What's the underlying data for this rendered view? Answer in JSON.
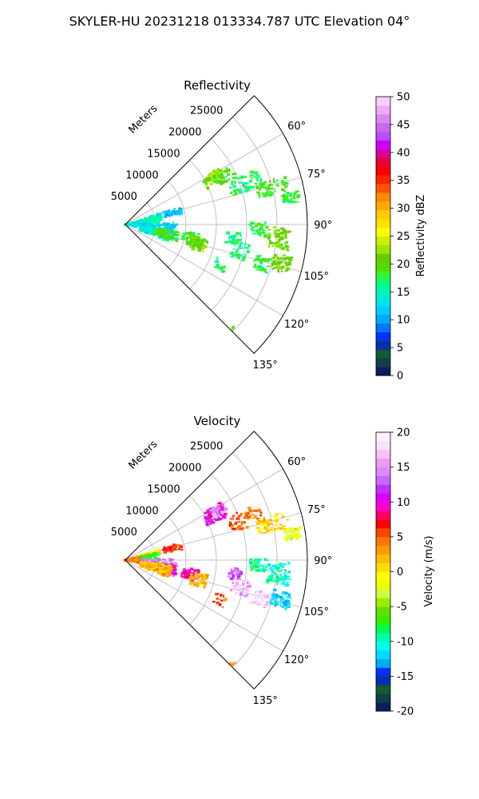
{
  "figure": {
    "suptitle": "SKYLER-HU  20231218  013334.787 UTC Elevation 04°"
  },
  "chart_data": [
    {
      "type": "polar-sector-ppi",
      "title": "Reflectivity",
      "range_axis_label": "Meters",
      "range_ticks": [
        5000,
        10000,
        15000,
        20000,
        25000
      ],
      "range_max": 30000,
      "azimuth_ticks_deg": [
        60,
        75,
        90,
        105,
        120,
        135
      ],
      "azimuth_tick_labels": [
        "60°",
        "75°",
        "90°",
        "105°",
        "120°",
        "135°"
      ],
      "azimuth_range_deg": [
        45,
        135
      ],
      "grid": true,
      "colorbar": {
        "label": "Reflectivity dBZ",
        "ticks": [
          0,
          5,
          10,
          15,
          20,
          25,
          30,
          35,
          40,
          45,
          50
        ],
        "range": [
          0,
          50
        ],
        "colors": [
          "#0b1f5e",
          "#0e3f4a",
          "#145a32",
          "#0a2fa8",
          "#0033ff",
          "#0077ff",
          "#00aaff",
          "#00ccff",
          "#00e6e6",
          "#00f5c0",
          "#00ff88",
          "#33f533",
          "#55dd00",
          "#66cc00",
          "#99e600",
          "#ccf000",
          "#ffff00",
          "#ffe000",
          "#ffcc00",
          "#ffaa00",
          "#ff8800",
          "#ff5500",
          "#ff2200",
          "#ff0000",
          "#e60033",
          "#d9009c",
          "#cc00ff",
          "#b84dff",
          "#cc66ee",
          "#dd88ee",
          "#eeaaf4",
          "#f6d0fa"
        ]
      },
      "echo_clusters": [
        {
          "az": 77,
          "r": 4300,
          "dr": 1800,
          "daz": 5,
          "value": 14,
          "n": 60
        },
        {
          "az": 76,
          "r": 8000,
          "dr": 1500,
          "daz": 4,
          "value": 11,
          "n": 50
        },
        {
          "az": 84,
          "r": 3000,
          "dr": 2600,
          "daz": 8,
          "value": 16,
          "n": 110
        },
        {
          "az": 88,
          "r": 1200,
          "dr": 1200,
          "daz": 14,
          "value": 13,
          "n": 60
        },
        {
          "az": 98,
          "r": 5500,
          "dr": 3000,
          "daz": 10,
          "value": 12,
          "n": 150
        },
        {
          "az": 104,
          "r": 5200,
          "dr": 2600,
          "daz": 8,
          "value": 14,
          "n": 140
        },
        {
          "az": 103,
          "r": 7000,
          "dr": 2000,
          "daz": 6,
          "value": 19,
          "n": 70
        },
        {
          "az": 102,
          "r": 11000,
          "dr": 1400,
          "daz": 5,
          "value": 18,
          "n": 50
        },
        {
          "az": 105,
          "r": 12500,
          "dr": 1400,
          "daz": 5,
          "value": 21,
          "n": 60
        },
        {
          "az": 63,
          "r": 16500,
          "dr": 1800,
          "daz": 4,
          "value": 22,
          "n": 80
        },
        {
          "az": 64,
          "r": 18000,
          "dr": 2000,
          "daz": 3,
          "value": 19,
          "n": 30
        },
        {
          "az": 71,
          "r": 21000,
          "dr": 2800,
          "daz": 4,
          "value": 17,
          "n": 60
        },
        {
          "az": 76,
          "r": 25000,
          "dr": 2600,
          "daz": 3,
          "value": 19,
          "n": 60
        },
        {
          "az": 81,
          "r": 27800,
          "dr": 1400,
          "daz": 2,
          "value": 18,
          "n": 40
        },
        {
          "az": 92,
          "r": 22000,
          "dr": 1400,
          "daz": 3,
          "value": 18,
          "n": 40
        },
        {
          "az": 95,
          "r": 25500,
          "dr": 1800,
          "daz": 4,
          "value": 21,
          "n": 70
        },
        {
          "az": 97,
          "r": 18000,
          "dr": 1200,
          "daz": 3,
          "value": 17,
          "n": 30
        },
        {
          "az": 103,
          "r": 19500,
          "dr": 1400,
          "daz": 4,
          "value": 17,
          "n": 40
        },
        {
          "az": 106,
          "r": 23500,
          "dr": 1600,
          "daz": 3,
          "value": 18,
          "n": 40
        },
        {
          "az": 104,
          "r": 26500,
          "dr": 1600,
          "daz": 3,
          "value": 21,
          "n": 60
        },
        {
          "az": 113,
          "r": 17000,
          "dr": 1000,
          "daz": 3,
          "value": 17,
          "n": 15
        },
        {
          "az": 134,
          "r": 24500,
          "dr": 300,
          "daz": 1,
          "value": 20,
          "n": 5
        }
      ]
    },
    {
      "type": "polar-sector-ppi",
      "title": "Velocity",
      "range_axis_label": "Meters",
      "range_ticks": [
        5000,
        10000,
        15000,
        20000,
        25000
      ],
      "range_max": 30000,
      "azimuth_ticks_deg": [
        60,
        75,
        90,
        105,
        120,
        135
      ],
      "azimuth_tick_labels": [
        "60°",
        "75°",
        "90°",
        "105°",
        "120°",
        "135°"
      ],
      "azimuth_range_deg": [
        45,
        135
      ],
      "grid": true,
      "colorbar": {
        "label": "Velocity (m/s)",
        "ticks": [
          -20,
          -15,
          -10,
          -5,
          0,
          5,
          10,
          15,
          20
        ],
        "range": [
          -20,
          20
        ],
        "colors": [
          "#0b1f5e",
          "#0e3f4a",
          "#145a32",
          "#0a2fa8",
          "#0033ff",
          "#00aaff",
          "#00ddff",
          "#00ffee",
          "#00ffaa",
          "#00ff44",
          "#33ee00",
          "#66dd00",
          "#99ee00",
          "#ccff44",
          "#eeff00",
          "#ffff00",
          "#ffdd00",
          "#ffbb00",
          "#ff9900",
          "#ff7700",
          "#ff4400",
          "#ff0000",
          "#ff0066",
          "#ff00cc",
          "#dd00ff",
          "#bb33ff",
          "#cc66ff",
          "#dd88ff",
          "#ee99f0",
          "#f6c0f8",
          "#fbe0fb",
          "#fff0fa"
        ]
      },
      "echo_clusters": [
        {
          "az": 77,
          "r": 4300,
          "dr": 1800,
          "daz": 5,
          "value": 1,
          "n": 60
        },
        {
          "az": 76,
          "r": 8000,
          "dr": 1500,
          "daz": 4,
          "value": 6,
          "n": 40
        },
        {
          "az": 84,
          "r": 3000,
          "dr": 2600,
          "daz": 8,
          "value": -7,
          "n": 110
        },
        {
          "az": 88,
          "r": 1200,
          "dr": 1200,
          "daz": 14,
          "value": 4,
          "n": 60
        },
        {
          "az": 98,
          "r": 5500,
          "dr": 3000,
          "daz": 10,
          "value": 14,
          "n": 150
        },
        {
          "az": 101,
          "r": 6500,
          "dr": 2000,
          "daz": 5,
          "value": 10,
          "n": 120
        },
        {
          "az": 104,
          "r": 5200,
          "dr": 2600,
          "daz": 8,
          "value": 2,
          "n": 150
        },
        {
          "az": 102,
          "r": 11000,
          "dr": 1400,
          "daz": 5,
          "value": 9,
          "n": 60
        },
        {
          "az": 105,
          "r": 12500,
          "dr": 1400,
          "daz": 5,
          "value": 2,
          "n": 50
        },
        {
          "az": 63,
          "r": 16500,
          "dr": 1800,
          "daz": 4,
          "value": 10,
          "n": 90
        },
        {
          "az": 62,
          "r": 17500,
          "dr": 1200,
          "daz": 3,
          "value": 15,
          "n": 30
        },
        {
          "az": 71,
          "r": 21000,
          "dr": 2800,
          "daz": 4,
          "value": 5,
          "n": 60
        },
        {
          "az": 76,
          "r": 25000,
          "dr": 2600,
          "daz": 3,
          "value": 1,
          "n": 60
        },
        {
          "az": 81,
          "r": 27800,
          "dr": 1400,
          "daz": 2,
          "value": -2,
          "n": 40
        },
        {
          "az": 92,
          "r": 22000,
          "dr": 1400,
          "daz": 3,
          "value": -9,
          "n": 40
        },
        {
          "az": 95,
          "r": 25500,
          "dr": 1800,
          "daz": 4,
          "value": -10,
          "n": 70
        },
        {
          "az": 97,
          "r": 18000,
          "dr": 1200,
          "daz": 3,
          "value": 13,
          "n": 30
        },
        {
          "az": 103,
          "r": 19500,
          "dr": 1400,
          "daz": 4,
          "value": 16,
          "n": 40
        },
        {
          "az": 106,
          "r": 23500,
          "dr": 1600,
          "daz": 3,
          "value": 17,
          "n": 50
        },
        {
          "az": 104,
          "r": 26500,
          "dr": 1600,
          "daz": 3,
          "value": -12,
          "n": 60
        },
        {
          "az": 113,
          "r": 17000,
          "dr": 1000,
          "daz": 3,
          "value": 5,
          "n": 15
        },
        {
          "az": 134,
          "r": 24500,
          "dr": 300,
          "daz": 1,
          "value": 3,
          "n": 5
        }
      ]
    }
  ]
}
